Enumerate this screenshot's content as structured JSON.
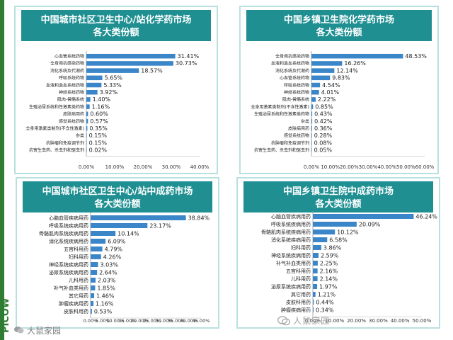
{
  "colors": {
    "title_bg": "#1f8f92",
    "title_text": "#ffffff",
    "bar": "#3a86c8",
    "panel_border": "#b9e0e0",
    "side_bar": "#2e7d32"
  },
  "side_logo_text": "PICOW",
  "watermark": {
    "left_text": "大鼠家园",
    "right_text": "人鼠家园",
    "right_icon": "wechat-icon",
    "left_icon": "wechat-icon"
  },
  "chart_data": [
    {
      "type": "bar",
      "orientation": "horizontal",
      "title": [
        "中国城市社区卫生中心/站化学药市场",
        "各大类份额"
      ],
      "categories": [
        "心血管系统药物",
        "全身用抗感染药物",
        "消化系统及代谢药",
        "呼吸系统药物",
        "血液和造血系统药物",
        "神经系统药物",
        "肌肉-骨骼系统",
        "生殖泌尿系统和性激素类药物",
        "皮肤病用药",
        "感觉系统药物",
        "全身用激素类制剂(不含性激素)",
        "杂类",
        "抗肿瘤和免疫调节剂",
        "抗寄生虫药、杀虫剂和驱虫剂"
      ],
      "values": [
        31.41,
        30.73,
        18.57,
        5.65,
        5.33,
        3.92,
        1.4,
        1.16,
        0.6,
        0.57,
        0.35,
        0.15,
        0.15,
        0.02
      ],
      "labels": [
        "31.41%",
        "30.73%",
        "18.57%",
        "5.65%",
        "5.33%",
        "3.92%",
        "1.40%",
        "1.16%",
        "0.60%",
        "0.57%",
        "0.35%",
        "0.15%",
        "0.15%",
        "0.02%"
      ],
      "xticks": [
        "0.00%",
        "10.00%",
        "20.00%",
        "30.00%",
        "40.00%"
      ],
      "xlim": [
        0,
        40
      ]
    },
    {
      "type": "bar",
      "orientation": "horizontal",
      "title": [
        "中国乡镇卫生院化学药市场",
        "各大类份额"
      ],
      "categories": [
        "全身用抗感染药物",
        "血液和造血系统药物",
        "消化系统及代谢药",
        "心血管系统药物",
        "呼吸系统药物",
        "神经系统药物",
        "肌肉-骨骼系统",
        "全身用激素类制剂(不含性激素)",
        "生殖泌尿系统和性激素类药物",
        "杂类",
        "皮肤病用药",
        "感觉系统药物",
        "抗肿瘤和免疫调节剂",
        "抗寄生虫药、杀虫剂和驱虫剂"
      ],
      "values": [
        48.53,
        16.26,
        12.14,
        9.83,
        4.54,
        4.01,
        2.22,
        0.85,
        0.43,
        0.42,
        0.36,
        0.28,
        0.08,
        0.05
      ],
      "labels": [
        "48.53%",
        "16.26%",
        "12.14%",
        "9.83%",
        "4.54%",
        "4.01%",
        "2.22%",
        "0.85%",
        "0.43%",
        "0.42%",
        "0.36%",
        "0.28%",
        "0.08%",
        "0.05%"
      ],
      "xticks": [
        "0.00%",
        "10.00%",
        "20.00%",
        "30.00%",
        "40.00%",
        "50.00%",
        "60.00%"
      ],
      "xlim": [
        0,
        60
      ]
    },
    {
      "type": "bar",
      "orientation": "horizontal",
      "title": [
        "中国城市社区卫生中心/站中成药市场",
        "各大类份额"
      ],
      "categories": [
        "心脑血管疾病用药",
        "呼吸系统疾病用药",
        "骨骼肌肉系统疾病用药",
        "消化系统疾病用药",
        "五官科用药",
        "妇科用药",
        "神经系统疾病用药",
        "泌尿系统疾病用药",
        "儿科用药",
        "补气补血类用药",
        "其它用药",
        "肿瘤疾病用药",
        "皮肤科用药"
      ],
      "values": [
        38.84,
        23.17,
        10.14,
        6.09,
        4.79,
        4.26,
        3.03,
        2.64,
        2.03,
        1.85,
        1.46,
        1.16,
        0.53
      ],
      "labels": [
        "38.84%",
        "23.17%",
        "10.14%",
        "6.09%",
        "4.79%",
        "4.26%",
        "3.03%",
        "2.64%",
        "2.03%",
        "1.85%",
        "1.46%",
        "1.16%",
        "0.53%"
      ],
      "xticks": [
        "0.00%",
        "5.00%",
        "10.00%",
        "15.00%",
        "20.00%",
        "25.00%",
        "30.00%",
        "35.00%",
        "40.00%",
        "45.00%"
      ],
      "xlim": [
        0,
        45
      ]
    },
    {
      "type": "bar",
      "orientation": "horizontal",
      "title": [
        "中国乡镇卫生院中成药市场",
        "各大类份额"
      ],
      "categories": [
        "心脑血管疾病用药",
        "呼吸系统疾病用药",
        "骨骼肌肉系统疾病用药",
        "消化系统疾病用药",
        "妇科用药",
        "神经系统疾病用药",
        "补气补血类用药",
        "五官科用药",
        "儿科用药",
        "泌尿系统疾病用药",
        "其它用药",
        "皮肤科用药",
        "肿瘤疾病用药"
      ],
      "values": [
        46.24,
        20.09,
        10.12,
        6.58,
        3.86,
        2.59,
        2.25,
        2.16,
        2.14,
        1.97,
        1.21,
        0.44,
        0.34
      ],
      "labels": [
        "46.24%",
        "20.09%",
        "10.12%",
        "6.58%",
        "3.86%",
        "2.59%",
        "2.25%",
        "2.16%",
        "2.14%",
        "1.97%",
        "1.21%",
        "0.44%",
        "0.34%"
      ],
      "xticks": [
        "0.00%",
        "10.00%",
        "20.00%",
        "30.00%",
        "40.00%",
        "50.00%"
      ],
      "xlim": [
        0,
        50
      ]
    }
  ]
}
